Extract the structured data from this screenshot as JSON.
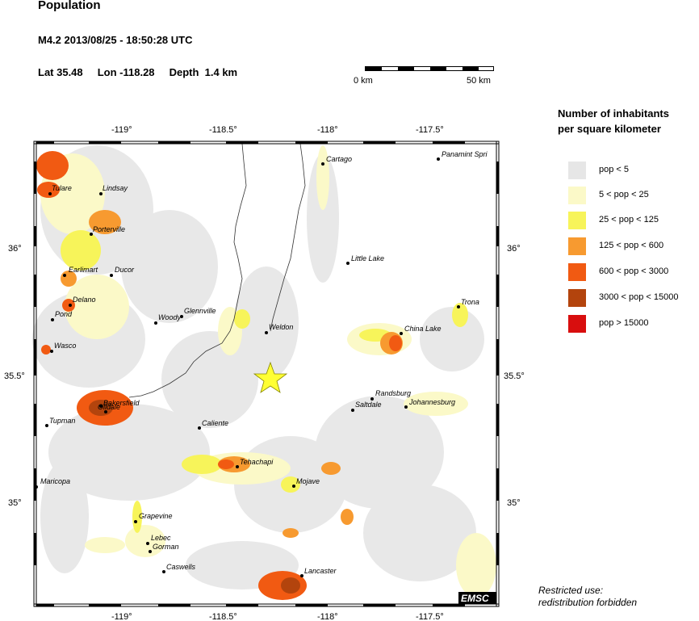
{
  "header": {
    "title": "Population",
    "event": "M4.2  2013/08/25 - 18:50:28 UTC",
    "lat": "Lat 35.48",
    "lon": "Lon -118.28",
    "depth": "Depth  1.4 km"
  },
  "scalebar": {
    "start_label": "0 km",
    "end_label": "50 km"
  },
  "axes": {
    "top_lon": [
      "-119°",
      "-118.5°",
      "-118°",
      "-117.5°"
    ],
    "bottom_lon": [
      "-119°",
      "-118.5°",
      "-118°",
      "-117.5°"
    ],
    "left_lat": [
      "36°",
      "35.5°",
      "35°"
    ],
    "right_lat": [
      "36°",
      "35.5°",
      "35°"
    ]
  },
  "legend": {
    "title_line1": "Number of inhabitants",
    "title_line2": "per square kilometer",
    "items": [
      {
        "label": "pop < 5",
        "color": "#e6e6e6"
      },
      {
        "label": "5 < pop < 25",
        "color": "#fbf9c8"
      },
      {
        "label": "25 < pop < 125",
        "color": "#f7f45a"
      },
      {
        "label": "125 < pop < 600",
        "color": "#f79a30"
      },
      {
        "label": "600 < pop < 3000",
        "color": "#f15a12"
      },
      {
        "label": "3000 < pop < 15000",
        "color": "#b3440d"
      },
      {
        "label": "pop > 15000",
        "color": "#d80e0e"
      }
    ]
  },
  "cities": [
    {
      "name": "Tulare"
    },
    {
      "name": "Lindsay"
    },
    {
      "name": "Porterville"
    },
    {
      "name": "Earlimart"
    },
    {
      "name": "Ducor"
    },
    {
      "name": "Delano"
    },
    {
      "name": "Pond"
    },
    {
      "name": "Woody"
    },
    {
      "name": "Glennville"
    },
    {
      "name": "Wasco"
    },
    {
      "name": "Weldon"
    },
    {
      "name": "Bakersfield"
    },
    {
      "name": "Oildale"
    },
    {
      "name": "Tupman"
    },
    {
      "name": "Caliente"
    },
    {
      "name": "Maricopa"
    },
    {
      "name": "Tehachapi"
    },
    {
      "name": "Mojave"
    },
    {
      "name": "Grapevine"
    },
    {
      "name": "Lebec"
    },
    {
      "name": "Gorman"
    },
    {
      "name": "Caswells"
    },
    {
      "name": "Lancaster"
    },
    {
      "name": "Cartago"
    },
    {
      "name": "Panamint Spri"
    },
    {
      "name": "Little Lake"
    },
    {
      "name": "Trona"
    },
    {
      "name": "China Lake"
    },
    {
      "name": "Randsburg"
    },
    {
      "name": "Saltdale"
    },
    {
      "name": "Johannesburg"
    }
  ],
  "epicenter": {
    "lat": 35.48,
    "lon": -118.28
  },
  "badge": "EMSC",
  "notice_line1": "Restricted use:",
  "notice_line2": "redistribution forbidden"
}
